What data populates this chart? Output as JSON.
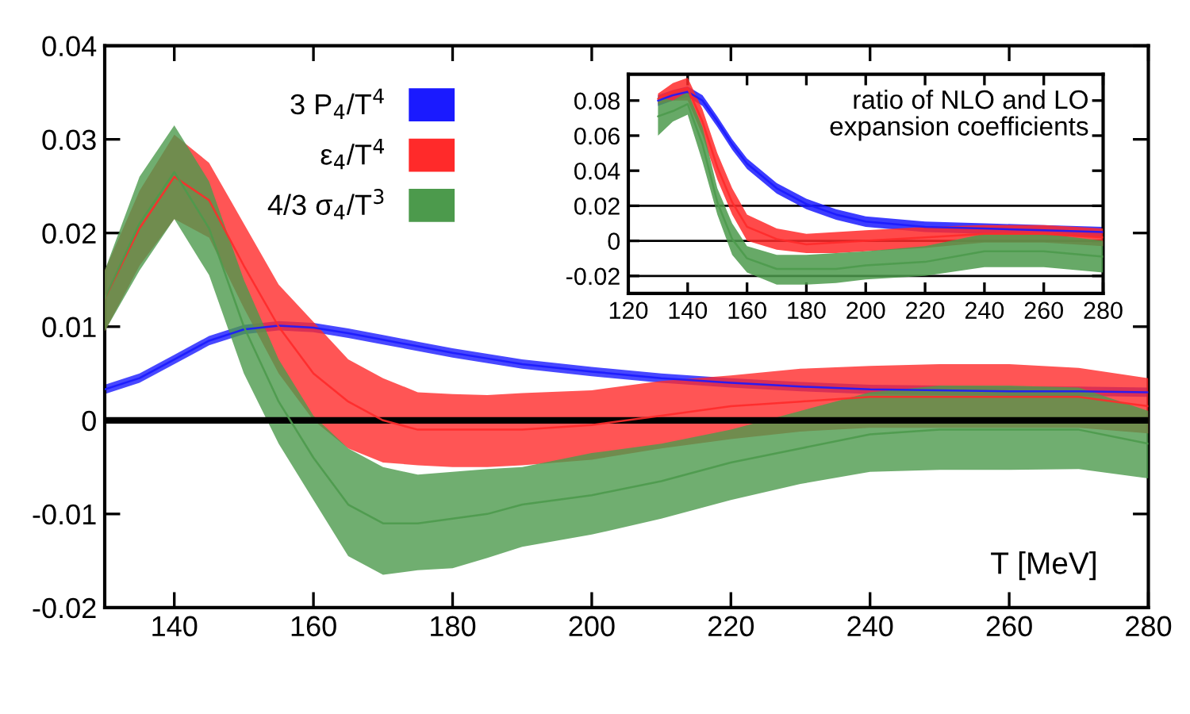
{
  "chart_data": [
    {
      "type": "line",
      "xlabel": "T [MeV]",
      "xlim": [
        130,
        280
      ],
      "ylim": [
        -0.02,
        0.04
      ],
      "xticks": [
        140,
        160,
        180,
        200,
        220,
        240,
        260,
        280
      ],
      "yticks": [
        -0.02,
        -0.01,
        0,
        0.01,
        0.02,
        0.03,
        0.04
      ],
      "legend": "top",
      "grid": false,
      "ref_lines": [
        {
          "axis": "y",
          "value": 0,
          "color": "#000000"
        }
      ],
      "x": [
        130,
        135,
        140,
        145,
        150,
        155,
        160,
        165,
        170,
        175,
        180,
        185,
        190,
        200,
        210,
        220,
        230,
        240,
        250,
        260,
        270,
        280
      ],
      "series": [
        {
          "name": "3 P$_{4}$/T$^{4}$",
          "color": "#1a1aff",
          "values": [
            0.0033,
            0.0045,
            0.0065,
            0.0085,
            0.0097,
            0.0101,
            0.0099,
            0.0093,
            0.0086,
            0.0079,
            0.0072,
            0.0066,
            0.006,
            0.0052,
            0.0045,
            0.004,
            0.0036,
            0.0033,
            0.0032,
            0.0031,
            0.0031,
            0.003
          ],
          "lower": [
            0.0028,
            0.004,
            0.006,
            0.008,
            0.0092,
            0.0096,
            0.0094,
            0.0088,
            0.0081,
            0.0074,
            0.0067,
            0.0061,
            0.0055,
            0.0047,
            0.004,
            0.0035,
            0.0031,
            0.0028,
            0.0027,
            0.0026,
            0.0026,
            0.0025
          ],
          "upper": [
            0.0038,
            0.005,
            0.007,
            0.009,
            0.0102,
            0.0106,
            0.0104,
            0.0098,
            0.0091,
            0.0084,
            0.0077,
            0.0071,
            0.0065,
            0.0057,
            0.005,
            0.0045,
            0.0041,
            0.0038,
            0.0037,
            0.0036,
            0.0036,
            0.0035
          ]
        },
        {
          "name": "ε$_{4}$/T$^{4}$",
          "color": "#ff2a2a",
          "values": [
            0.013,
            0.0205,
            0.026,
            0.0235,
            0.0165,
            0.01,
            0.005,
            0.002,
            0,
            -0.001,
            -0.001,
            -0.001,
            -0.001,
            -0.0005,
            0.0005,
            0.0015,
            0.002,
            0.0025,
            0.0025,
            0.0025,
            0.0025,
            0.0015
          ],
          "lower": [
            0.0095,
            0.0165,
            0.0215,
            0.0195,
            0.012,
            0.005,
            0.0,
            -0.003,
            -0.0045,
            -0.0048,
            -0.005,
            -0.005,
            -0.0048,
            -0.0042,
            -0.003,
            -0.002,
            -0.0012,
            -0.0008,
            -0.0008,
            -0.0008,
            -0.0008,
            -0.0014
          ],
          "upper": [
            0.016,
            0.0245,
            0.0305,
            0.0275,
            0.021,
            0.0145,
            0.0105,
            0.0065,
            0.0045,
            0.003,
            0.0028,
            0.0027,
            0.0029,
            0.0032,
            0.0042,
            0.0048,
            0.0055,
            0.0058,
            0.006,
            0.006,
            0.0056,
            0.0045
          ]
        },
        {
          "name": "4/3 σ$_{4}$/T$^{3}$",
          "color": "#4c9a4c",
          "values": [
            0.013,
            0.021,
            0.0265,
            0.0205,
            0.01,
            0.002,
            -0.004,
            -0.009,
            -0.011,
            -0.011,
            -0.0105,
            -0.01,
            -0.009,
            -0.008,
            -0.0065,
            -0.0045,
            -0.003,
            -0.0015,
            -0.001,
            -0.001,
            -0.001,
            -0.0025
          ],
          "lower": [
            0.0095,
            0.016,
            0.0215,
            0.0155,
            0.005,
            -0.0025,
            -0.0085,
            -0.0145,
            -0.0165,
            -0.016,
            -0.0158,
            -0.0147,
            -0.0135,
            -0.0122,
            -0.0105,
            -0.0085,
            -0.0068,
            -0.0055,
            -0.0053,
            -0.0053,
            -0.0052,
            -0.0062
          ],
          "upper": [
            0.016,
            0.026,
            0.0315,
            0.0255,
            0.015,
            0.0065,
            0.0005,
            -0.003,
            -0.005,
            -0.0058,
            -0.0055,
            -0.0052,
            -0.005,
            -0.0035,
            -0.0025,
            -0.001,
            0.001,
            0.003,
            0.0037,
            0.0037,
            0.0035,
            0.001
          ]
        }
      ]
    },
    {
      "type": "line",
      "xlim": [
        120,
        280
      ],
      "ylim": [
        -0.03,
        0.095
      ],
      "xticks": [
        120,
        140,
        160,
        180,
        200,
        220,
        240,
        260,
        280
      ],
      "yticks": [
        -0.02,
        0,
        0.02,
        0.04,
        0.06,
        0.08
      ],
      "grid": false,
      "annotations": [
        "ratio of NLO and LO\nexpansion coefficients"
      ],
      "ref_lines": [
        {
          "axis": "y",
          "value": 0.02,
          "color": "#000000"
        },
        {
          "axis": "y",
          "value": 0,
          "color": "#000000"
        },
        {
          "axis": "y",
          "value": -0.02,
          "color": "#000000"
        }
      ],
      "x": [
        130,
        135,
        140,
        145,
        150,
        155,
        160,
        170,
        180,
        190,
        200,
        220,
        240,
        260,
        280
      ],
      "series": [
        {
          "color": "#1a1aff",
          "values": [
            0.08,
            0.083,
            0.085,
            0.08,
            0.068,
            0.055,
            0.044,
            0.03,
            0.021,
            0.015,
            0.011,
            0.008,
            0.007,
            0.006,
            0.005
          ],
          "lower": [
            0.077,
            0.08,
            0.082,
            0.077,
            0.065,
            0.052,
            0.041,
            0.027,
            0.018,
            0.012,
            0.008,
            0.005,
            0.004,
            0.003,
            0.002
          ],
          "upper": [
            0.083,
            0.086,
            0.088,
            0.083,
            0.071,
            0.058,
            0.047,
            0.033,
            0.024,
            0.018,
            0.014,
            0.011,
            0.01,
            0.009,
            0.008
          ]
        },
        {
          "color": "#ff2a2a",
          "values": [
            0.081,
            0.085,
            0.087,
            0.068,
            0.042,
            0.022,
            0.008,
            0.001,
            -0.002,
            -0.001,
            0,
            0.002,
            0.004,
            0.004,
            0.002
          ],
          "lower": [
            0.078,
            0.08,
            0.08,
            0.06,
            0.035,
            0.015,
            0.0,
            -0.005,
            -0.007,
            -0.007,
            -0.006,
            -0.004,
            -0.001,
            -0.001,
            -0.003
          ],
          "upper": [
            0.084,
            0.09,
            0.093,
            0.075,
            0.05,
            0.03,
            0.015,
            0.007,
            0.004,
            0.005,
            0.006,
            0.008,
            0.009,
            0.009,
            0.007
          ]
        },
        {
          "color": "#4c9a4c",
          "values": [
            0.071,
            0.074,
            0.078,
            0.055,
            0.022,
            0.001,
            -0.01,
            -0.016,
            -0.016,
            -0.016,
            -0.014,
            -0.012,
            -0.006,
            -0.006,
            -0.009
          ],
          "lower": [
            0.06,
            0.068,
            0.072,
            0.045,
            0.015,
            -0.008,
            -0.018,
            -0.025,
            -0.025,
            -0.024,
            -0.022,
            -0.02,
            -0.015,
            -0.015,
            -0.018
          ],
          "upper": [
            0.082,
            0.08,
            0.085,
            0.065,
            0.03,
            0.01,
            -0.003,
            -0.008,
            -0.008,
            -0.007,
            -0.006,
            -0.003,
            0.004,
            0.004,
            0.0
          ]
        }
      ]
    }
  ]
}
